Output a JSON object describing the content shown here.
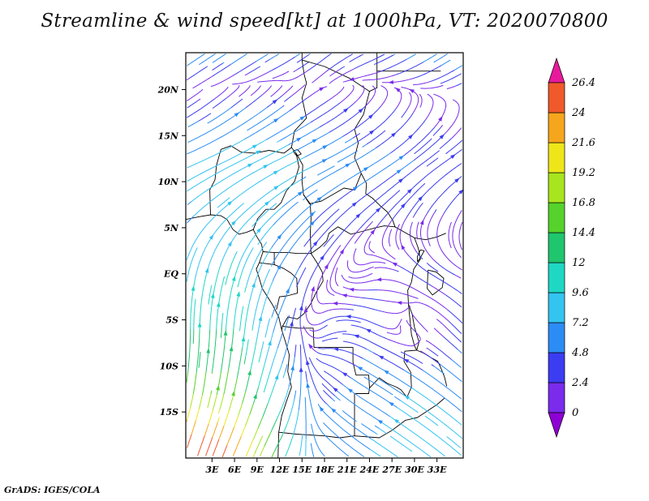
{
  "title": "Streamline & wind speed[kt] at 1000hPa, VT: 2020070800",
  "attribution": "GrADS: IGES/COLA",
  "chart_data": {
    "type": "streamline",
    "variable": "wind speed",
    "units": "kt",
    "level": "1000hPa",
    "valid_time": "2020070800",
    "region": {
      "lon_min": -0.5,
      "lon_max": 36.5,
      "lat_min": -20,
      "lat_max": 24
    },
    "x_ticks": [
      "3E",
      "6E",
      "9E",
      "12E",
      "15E",
      "18E",
      "21E",
      "24E",
      "27E",
      "30E",
      "33E"
    ],
    "x_tick_lons": [
      3,
      6,
      9,
      12,
      15,
      18,
      21,
      24,
      27,
      30,
      33
    ],
    "y_ticks": [
      "20N",
      "15N",
      "10N",
      "5N",
      "EQ",
      "5S",
      "10S",
      "15S"
    ],
    "y_tick_lats": [
      20,
      15,
      10,
      5,
      0,
      -5,
      -10,
      -15
    ],
    "colorbar": {
      "levels": [
        0,
        2.4,
        4.8,
        7.2,
        9.6,
        12,
        14.4,
        16.8,
        19.2,
        21.6,
        24,
        26.4
      ],
      "colors": [
        "#8E00D4",
        "#7A2BEC",
        "#3C3CF2",
        "#2B8CF5",
        "#33C4F0",
        "#1FD8C4",
        "#1FC66E",
        "#55D22B",
        "#A8E51E",
        "#EFE61A",
        "#F6A61C",
        "#F0592A",
        "#E8199C"
      ]
    },
    "wind_grid": {
      "lons": [
        0,
        6,
        12,
        18,
        24,
        30,
        36
      ],
      "lats": [
        24,
        18,
        12,
        6,
        0,
        -6,
        -12,
        -18
      ],
      "u": [
        [
          -6,
          -6,
          -5,
          -4,
          -4,
          -5,
          -6
        ],
        [
          3,
          4,
          4,
          3,
          2,
          1,
          0
        ],
        [
          7,
          8,
          8,
          6,
          5,
          4,
          3
        ],
        [
          5,
          6,
          5,
          3,
          2,
          1,
          1
        ],
        [
          2,
          3,
          3,
          1,
          -2,
          -3,
          -2
        ],
        [
          0,
          1,
          2,
          -3,
          -4,
          2,
          -3
        ],
        [
          2,
          3,
          3,
          -3,
          -5,
          -6,
          -5
        ],
        [
          8,
          9,
          6,
          -4,
          -6,
          -7,
          -6
        ]
      ],
      "v": [
        [
          -4,
          -4,
          -3,
          -3,
          -2,
          -3,
          -4
        ],
        [
          2,
          3,
          3,
          2,
          2,
          2,
          1
        ],
        [
          3,
          4,
          4,
          3,
          3,
          3,
          2
        ],
        [
          5,
          6,
          5,
          3,
          2,
          2,
          2
        ],
        [
          9,
          10,
          6,
          2,
          -1,
          2,
          1
        ],
        [
          12,
          12,
          6,
          -2,
          2,
          -2,
          3
        ],
        [
          15,
          15,
          8,
          3,
          3,
          4,
          4
        ],
        [
          24,
          22,
          12,
          4,
          4,
          5,
          5
        ]
      ]
    },
    "map_borders": [
      [
        [
          -0.5,
          5.9
        ],
        [
          1.3,
          6.2
        ],
        [
          2.8,
          6.4
        ],
        [
          4.2,
          6.3
        ],
        [
          5.0,
          5.9
        ],
        [
          5.8,
          4.8
        ],
        [
          6.6,
          4.3
        ],
        [
          7.6,
          4.5
        ],
        [
          8.5,
          4.8
        ],
        [
          9.0,
          4.0
        ],
        [
          9.6,
          3.2
        ],
        [
          9.8,
          2.4
        ],
        [
          9.3,
          1.2
        ],
        [
          8.9,
          0.5
        ],
        [
          9.3,
          -0.5
        ],
        [
          9.7,
          -1.6
        ],
        [
          11.1,
          -3.4
        ],
        [
          11.9,
          -4.7
        ],
        [
          12.3,
          -6.1
        ],
        [
          12.8,
          -7.4
        ],
        [
          13.3,
          -8.8
        ],
        [
          13.1,
          -10.6
        ],
        [
          13.6,
          -12.3
        ],
        [
          12.9,
          -13.9
        ],
        [
          12.3,
          -15.4
        ],
        [
          11.9,
          -17.2
        ],
        [
          11.8,
          -20
        ]
      ],
      [
        [
          2.8,
          6.4
        ],
        [
          2.7,
          9.1
        ],
        [
          3.4,
          10.2
        ],
        [
          3.6,
          11.8
        ],
        [
          4.2,
          13.5
        ]
      ],
      [
        [
          4.2,
          13.5
        ],
        [
          5.5,
          13.9
        ],
        [
          6.9,
          13.2
        ],
        [
          8.7,
          13.1
        ],
        [
          10.6,
          13.4
        ],
        [
          12.6,
          13.1
        ],
        [
          13.6,
          13.7
        ]
      ],
      [
        [
          13.6,
          13.7
        ],
        [
          14.2,
          13.1
        ],
        [
          14.6,
          11.6
        ],
        [
          14.0,
          10.0
        ],
        [
          12.9,
          9.0
        ],
        [
          12.2,
          7.7
        ],
        [
          11.3,
          7.0
        ],
        [
          10.2,
          7.0
        ],
        [
          9.1,
          6.0
        ],
        [
          8.5,
          4.8
        ]
      ],
      [
        [
          14.2,
          13.1
        ],
        [
          15.1,
          11.8
        ],
        [
          15.0,
          10.0
        ],
        [
          15.2,
          8.6
        ],
        [
          16.1,
          7.6
        ],
        [
          16.2,
          6.0
        ],
        [
          16.1,
          4.3
        ],
        [
          16.2,
          2.2
        ],
        [
          14.4,
          2.2
        ],
        [
          13.2,
          2.3
        ],
        [
          11.3,
          2.3
        ],
        [
          9.8,
          2.4
        ]
      ],
      [
        [
          11.3,
          2.3
        ],
        [
          11.3,
          1.0
        ],
        [
          9.3,
          1.2
        ]
      ],
      [
        [
          11.3,
          1.0
        ],
        [
          12.5,
          0.6
        ],
        [
          13.5,
          0.1
        ],
        [
          14.3,
          -0.5
        ],
        [
          14.4,
          -2.1
        ],
        [
          13.0,
          -2.4
        ],
        [
          12.0,
          -2.5
        ],
        [
          11.6,
          -3.9
        ]
      ],
      [
        [
          16.2,
          2.2
        ],
        [
          17.0,
          1.2
        ],
        [
          17.7,
          0.2
        ],
        [
          17.8,
          -0.8
        ],
        [
          16.9,
          -2.0
        ],
        [
          16.2,
          -3.2
        ],
        [
          15.3,
          -4.3
        ],
        [
          14.4,
          -4.9
        ],
        [
          13.1,
          -4.7
        ],
        [
          12.4,
          -5.7
        ],
        [
          12.3,
          -6.1
        ]
      ],
      [
        [
          12.4,
          -5.7
        ],
        [
          14.5,
          -5.9
        ],
        [
          16.5,
          -5.9
        ],
        [
          16.6,
          -8.0
        ],
        [
          18.5,
          -8.0
        ],
        [
          21.8,
          -8.0
        ],
        [
          21.8,
          -9.6
        ],
        [
          22.2,
          -11.0
        ],
        [
          23.9,
          -11.0
        ],
        [
          24.0,
          -12.4
        ]
      ],
      [
        [
          24.0,
          -12.4
        ],
        [
          23.9,
          -13.0
        ],
        [
          22.0,
          -13.0
        ],
        [
          22.0,
          -17.6
        ],
        [
          20.0,
          -17.8
        ],
        [
          18.0,
          -17.6
        ],
        [
          14.2,
          -17.4
        ],
        [
          11.9,
          -17.2
        ]
      ],
      [
        [
          24.0,
          -12.4
        ],
        [
          25.3,
          -11.3
        ],
        [
          26.4,
          -11.9
        ],
        [
          27.6,
          -12.3
        ],
        [
          28.2,
          -12.6
        ],
        [
          29.0,
          -13.4
        ],
        [
          29.6,
          -12.3
        ],
        [
          29.5,
          -10.7
        ],
        [
          28.6,
          -9.5
        ],
        [
          28.7,
          -8.4
        ],
        [
          30.3,
          -8.3
        ]
      ],
      [
        [
          29.2,
          -3.3
        ],
        [
          29.4,
          -5.0
        ],
        [
          29.6,
          -6.6
        ],
        [
          30.0,
          -7.8
        ],
        [
          30.3,
          -8.3
        ]
      ],
      [
        [
          29.2,
          -3.3
        ],
        [
          29.7,
          -4.4
        ],
        [
          30.0,
          -5.8
        ],
        [
          30.6,
          -7.4
        ],
        [
          30.3,
          -8.3
        ]
      ],
      [
        [
          16.2,
          2.2
        ],
        [
          17.4,
          2.9
        ],
        [
          18.3,
          3.6
        ],
        [
          18.6,
          4.4
        ],
        [
          19.8,
          5.1
        ],
        [
          21.5,
          4.3
        ],
        [
          23.0,
          4.6
        ],
        [
          24.8,
          5.0
        ],
        [
          26.0,
          5.2
        ],
        [
          27.4,
          5.1
        ],
        [
          28.7,
          4.5
        ],
        [
          30.0,
          3.9
        ]
      ],
      [
        [
          22.9,
          10.9
        ],
        [
          23.6,
          9.8
        ],
        [
          23.5,
          8.7
        ],
        [
          24.4,
          8.2
        ],
        [
          25.4,
          7.4
        ],
        [
          26.4,
          6.7
        ],
        [
          27.1,
          5.8
        ],
        [
          27.4,
          5.1
        ]
      ],
      [
        [
          15.2,
          8.6
        ],
        [
          16.0,
          7.6
        ],
        [
          17.6,
          7.9
        ],
        [
          19.1,
          8.6
        ],
        [
          20.6,
          9.3
        ],
        [
          22.0,
          9.1
        ],
        [
          22.9,
          10.9
        ]
      ],
      [
        [
          13.6,
          13.7
        ],
        [
          14.0,
          15.5
        ],
        [
          15.6,
          16.9
        ],
        [
          15.0,
          19.1
        ],
        [
          15.6,
          20.7
        ],
        [
          15.3,
          21.6
        ],
        [
          15.0,
          23.2
        ],
        [
          15.0,
          24
        ]
      ],
      [
        [
          15.0,
          23.2
        ],
        [
          18.0,
          22.5
        ],
        [
          21.4,
          21.2
        ],
        [
          24.0,
          19.8
        ]
      ],
      [
        [
          24.0,
          19.8
        ],
        [
          25.0,
          20.2
        ],
        [
          25.0,
          22.0
        ],
        [
          25.0,
          24
        ]
      ],
      [
        [
          25.0,
          22.0
        ],
        [
          33.5,
          22.0
        ]
      ],
      [
        [
          24.0,
          19.8
        ],
        [
          23.2,
          17.3
        ],
        [
          22.0,
          15.7
        ],
        [
          22.5,
          14.2
        ],
        [
          22.0,
          12.6
        ],
        [
          22.9,
          10.9
        ]
      ],
      [
        [
          30.0,
          3.9
        ],
        [
          30.5,
          2.8
        ],
        [
          30.8,
          1.6
        ],
        [
          29.9,
          0.5
        ],
        [
          29.6,
          -0.9
        ],
        [
          29.1,
          -1.8
        ],
        [
          29.2,
          -3.3
        ]
      ],
      [
        [
          31.8,
          0.4
        ],
        [
          32.9,
          0.2
        ],
        [
          33.9,
          -0.5
        ],
        [
          33.7,
          -1.5
        ],
        [
          32.4,
          -2.3
        ],
        [
          31.7,
          -1.6
        ],
        [
          31.8,
          0.4
        ]
      ],
      [
        [
          30.4,
          1.3
        ],
        [
          30.9,
          1.9
        ],
        [
          31.3,
          2.5
        ],
        [
          30.8,
          2.6
        ],
        [
          30.4,
          1.9
        ],
        [
          30.4,
          1.3
        ]
      ],
      [
        [
          22.0,
          -17.6
        ],
        [
          25.3,
          -17.8
        ],
        [
          27.0,
          -17.0
        ],
        [
          28.8,
          -15.9
        ],
        [
          30.4,
          -15.6
        ],
        [
          33.0,
          -14.2
        ],
        [
          34.0,
          -13.5
        ]
      ],
      [
        [
          30.3,
          -8.3
        ],
        [
          31.2,
          -8.6
        ],
        [
          32.2,
          -9.1
        ],
        [
          33.1,
          -9.5
        ],
        [
          33.5,
          -10.2
        ],
        [
          34.0,
          -11.2
        ],
        [
          34.3,
          -12.2
        ]
      ],
      [
        [
          30.0,
          3.9
        ],
        [
          31.5,
          3.7
        ],
        [
          33.0,
          4.0
        ],
        [
          34.2,
          4.4
        ]
      ],
      [
        [
          13.8,
          13.3
        ],
        [
          14.4,
          13.5
        ],
        [
          14.9,
          13.0
        ],
        [
          14.3,
          12.8
        ],
        [
          13.8,
          13.3
        ]
      ]
    ]
  }
}
